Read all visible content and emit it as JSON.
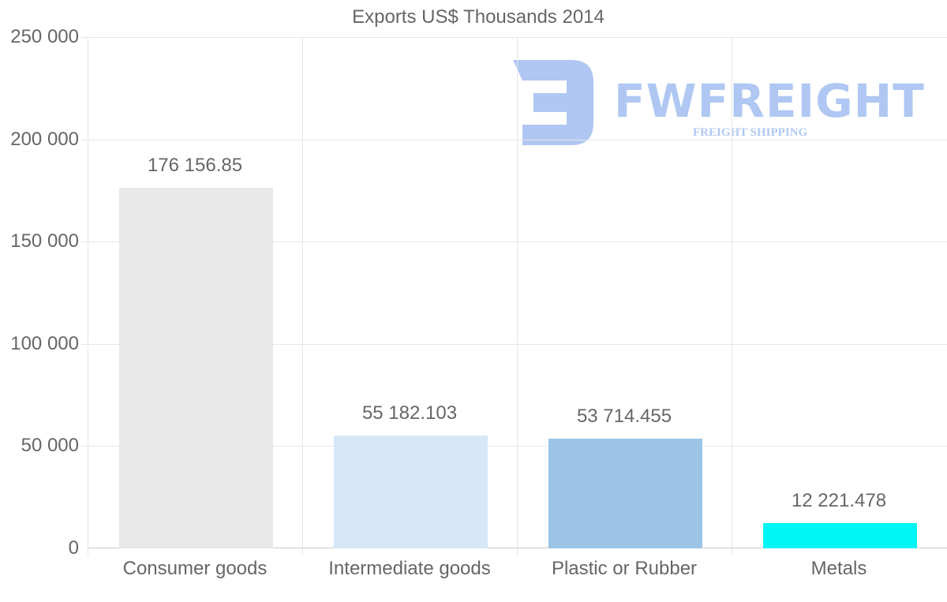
{
  "chart_data": {
    "type": "bar",
    "title": "Exports US$ Thousands 2014",
    "xlabel": "",
    "ylabel": "",
    "categories": [
      "Consumer goods",
      "Intermediate goods",
      "Plastic or Rubber",
      "Metals"
    ],
    "values": [
      176156.85,
      55182.103,
      53714.455,
      12221.478
    ],
    "value_labels": [
      "176 156.85",
      "55 182.103",
      "53 714.455",
      "12 221.478"
    ],
    "colors": [
      "#e8e8e8",
      "#d6e7f8",
      "#9bc4e7",
      "#00f5f5"
    ],
    "ylim": [
      0,
      250000
    ],
    "yticks": [
      0,
      50000,
      100000,
      150000,
      200000,
      250000
    ],
    "ytick_labels": [
      "0",
      "50 000",
      "100 000",
      "150 000",
      "200 000",
      "250 000"
    ],
    "grid": true,
    "legend": "none"
  },
  "watermark": {
    "brand": "FWFREIGHT",
    "tagline": "FREIGHT SHIPPING",
    "color": "#6e9be8"
  }
}
